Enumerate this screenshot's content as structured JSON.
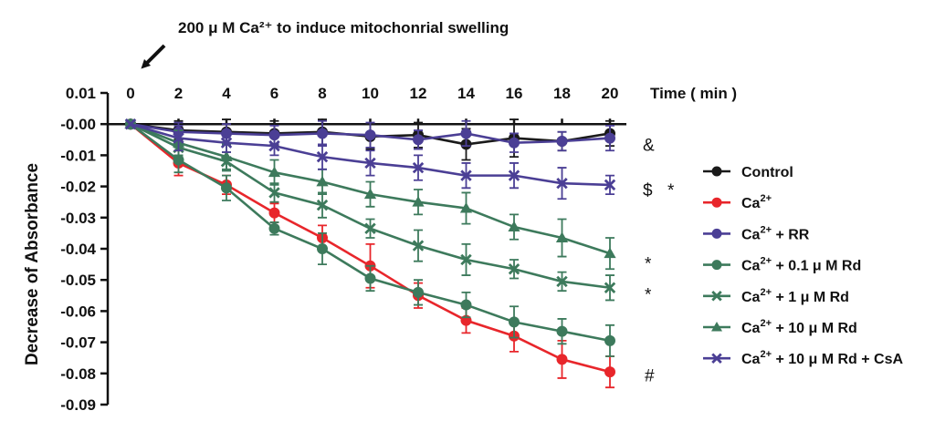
{
  "chart_data": {
    "type": "line",
    "title": "",
    "annotation": "200 μ M Ca²⁺ to induce mitochonrial swelling",
    "xlabel": "Time ( min )",
    "ylabel": "Decrease of Absorbance",
    "xlim": [
      0,
      20
    ],
    "ylim": [
      -0.09,
      0.01
    ],
    "x": [
      0,
      2,
      4,
      6,
      8,
      10,
      12,
      14,
      16,
      18,
      20
    ],
    "x_ticks": [
      "0",
      "2",
      "4",
      "6",
      "8",
      "10",
      "12",
      "14",
      "16",
      "18",
      "20"
    ],
    "y_ticks": [
      {
        "v": 0.01,
        "label": "0.01"
      },
      {
        "v": 0.0,
        "label": "-0.00"
      },
      {
        "v": -0.01,
        "label": "-0.01"
      },
      {
        "v": -0.02,
        "label": "-0.02"
      },
      {
        "v": -0.03,
        "label": "-0.03"
      },
      {
        "v": -0.04,
        "label": "-0.04"
      },
      {
        "v": -0.05,
        "label": "-0.05"
      },
      {
        "v": -0.06,
        "label": "-0.06"
      },
      {
        "v": -0.07,
        "label": "-0.07"
      },
      {
        "v": -0.08,
        "label": "-0.08"
      },
      {
        "v": -0.09,
        "label": "-0.09"
      }
    ],
    "legend_position": "right",
    "series": [
      {
        "name": "Control",
        "label_main": "Control",
        "label_tail": "",
        "color": "#1a1a1a",
        "marker": "circle",
        "values": [
          0,
          -0.002,
          -0.0025,
          -0.003,
          -0.0025,
          -0.004,
          -0.0035,
          -0.0065,
          -0.0045,
          -0.0055,
          -0.003
        ],
        "errors": [
          0,
          0.003,
          0.004,
          0.004,
          0.004,
          0.004,
          0.004,
          0.005,
          0.006,
          0.003,
          0.004
        ]
      },
      {
        "name": "Ca2+",
        "label_main": "Ca",
        "label_tail": "",
        "color": "#e8262b",
        "marker": "circle",
        "values": [
          0,
          -0.0125,
          -0.0195,
          -0.0285,
          -0.0365,
          -0.0455,
          -0.055,
          -0.063,
          -0.068,
          -0.0755,
          -0.0795
        ],
        "errors": [
          0,
          0.004,
          0.003,
          0.003,
          0.004,
          0.007,
          0.004,
          0.004,
          0.005,
          0.006,
          0.005
        ]
      },
      {
        "name": "Ca2+ + RR",
        "label_main": "Ca",
        "label_tail": " + RR",
        "color": "#4b3f95",
        "marker": "circle",
        "values": [
          0,
          -0.0025,
          -0.003,
          -0.0035,
          -0.003,
          -0.0035,
          -0.005,
          -0.003,
          -0.006,
          -0.0055,
          -0.0045
        ],
        "errors": [
          0,
          0.003,
          0.003,
          0.003,
          0.004,
          0.004,
          0.003,
          0.004,
          0.003,
          0.003,
          0.004
        ]
      },
      {
        "name": "Ca2+ + 0.1 μ M Rd",
        "label_main": "Ca",
        "label_tail": " + 0.1 μ M Rd",
        "color": "#3d7a5c",
        "marker": "circle",
        "values": [
          0,
          -0.0115,
          -0.0205,
          -0.0335,
          -0.04,
          -0.0495,
          -0.054,
          -0.058,
          -0.0635,
          -0.0665,
          -0.0695
        ],
        "errors": [
          0,
          0.004,
          0.004,
          0.002,
          0.005,
          0.004,
          0.004,
          0.004,
          0.005,
          0.004,
          0.005
        ]
      },
      {
        "name": "Ca2+ + 1 μ M Rd",
        "label_main": "Ca",
        "label_tail": " + 1 μ M Rd",
        "color": "#3d7a5c",
        "marker": "x",
        "values": [
          0,
          -0.0075,
          -0.012,
          -0.022,
          -0.026,
          -0.0335,
          -0.039,
          -0.0435,
          -0.0465,
          -0.0505,
          -0.0525
        ],
        "errors": [
          0,
          0.003,
          0.003,
          0.003,
          0.004,
          0.003,
          0.005,
          0.005,
          0.003,
          0.003,
          0.004
        ]
      },
      {
        "name": "Ca2+ + 10 μ M Rd",
        "label_main": "Ca",
        "label_tail": " + 10 μ M Rd",
        "color": "#3d7a5c",
        "marker": "triangle",
        "values": [
          0,
          -0.006,
          -0.0105,
          -0.0155,
          -0.0185,
          -0.0225,
          -0.025,
          -0.027,
          -0.033,
          -0.0365,
          -0.0415
        ],
        "errors": [
          0,
          0.004,
          0.004,
          0.004,
          0.004,
          0.004,
          0.004,
          0.005,
          0.004,
          0.006,
          0.005
        ]
      },
      {
        "name": "Ca2+ + 10 μ M Rd + CsA",
        "label_main": "Ca",
        "label_tail": " + 10 μ M Rd + CsA",
        "color": "#4b3f95",
        "marker": "x",
        "values": [
          0,
          -0.0045,
          -0.006,
          -0.007,
          -0.0105,
          -0.0125,
          -0.014,
          -0.0165,
          -0.0165,
          -0.019,
          -0.0195
        ],
        "errors": [
          0,
          0.004,
          0.003,
          0.003,
          0.004,
          0.004,
          0.004,
          0.004,
          0.004,
          0.005,
          0.003
        ]
      }
    ],
    "significance_marks": [
      {
        "text": "&",
        "y": -0.0065
      },
      {
        "text": "$",
        "y": -0.021
      },
      {
        "text": "*",
        "y": -0.021
      },
      {
        "text": "*",
        "y": -0.0445
      },
      {
        "text": "*",
        "y": -0.0545
      },
      {
        "text": "#",
        "y": -0.0805
      }
    ],
    "superscript": "2+"
  }
}
